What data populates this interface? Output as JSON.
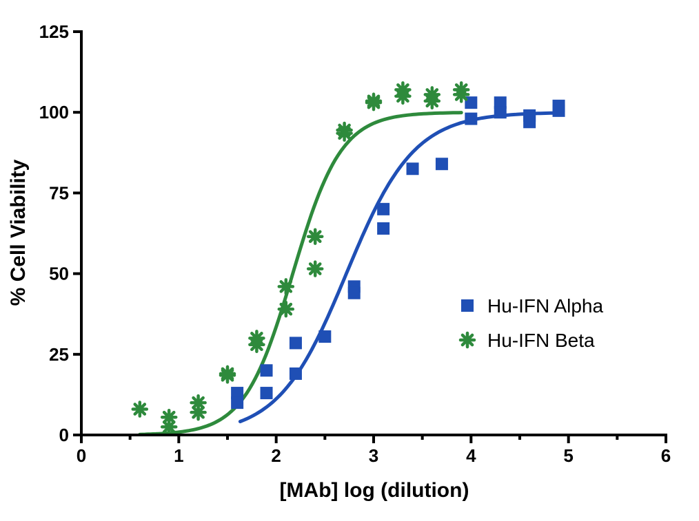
{
  "chart_data": {
    "type": "scatter",
    "title": "",
    "xlabel": "[MAb] log (dilution)",
    "ylabel": "% Cell Viability",
    "xlim": [
      0,
      6
    ],
    "ylim": [
      0,
      125
    ],
    "x_ticks": [
      0,
      1,
      2,
      3,
      4,
      5,
      6
    ],
    "y_ticks": [
      0,
      25,
      50,
      75,
      100,
      125
    ],
    "grid": false,
    "legend_position": "right",
    "series": [
      {
        "name": "Hu-IFN Alpha",
        "marker": "square",
        "color": "#1f4fb5",
        "points": [
          [
            1.6,
            13
          ],
          [
            1.6,
            10
          ],
          [
            1.9,
            20
          ],
          [
            1.9,
            13
          ],
          [
            2.2,
            28.5
          ],
          [
            2.2,
            19
          ],
          [
            2.5,
            30.5
          ],
          [
            2.8,
            46
          ],
          [
            2.8,
            44
          ],
          [
            3.1,
            70
          ],
          [
            3.1,
            64
          ],
          [
            3.4,
            82.5
          ],
          [
            3.7,
            84
          ],
          [
            4.0,
            103
          ],
          [
            4.0,
            98
          ],
          [
            4.3,
            103
          ],
          [
            4.3,
            100
          ],
          [
            4.6,
            99
          ],
          [
            4.6,
            97
          ],
          [
            4.9,
            102
          ],
          [
            4.9,
            100.5
          ]
        ],
        "fit": {
          "from": 1.63,
          "to": 4.9,
          "bottom": 0,
          "top": 100,
          "logEC50": 2.72,
          "slope": 1.25
        }
      },
      {
        "name": "Hu-IFN Beta",
        "marker": "asterisk",
        "color": "#2e8a3c",
        "points": [
          [
            0.6,
            8
          ],
          [
            0.9,
            5.5
          ],
          [
            0.9,
            2.5
          ],
          [
            1.2,
            10
          ],
          [
            1.2,
            7
          ],
          [
            1.5,
            19
          ],
          [
            1.5,
            18.5
          ],
          [
            1.8,
            30
          ],
          [
            1.8,
            28
          ],
          [
            2.1,
            46
          ],
          [
            2.1,
            39
          ],
          [
            2.4,
            61.5
          ],
          [
            2.4,
            51.5
          ],
          [
            2.7,
            94.5
          ],
          [
            2.7,
            93.5
          ],
          [
            3.0,
            103.5
          ],
          [
            3.0,
            103
          ],
          [
            3.3,
            107
          ],
          [
            3.3,
            105
          ],
          [
            3.6,
            105.5
          ],
          [
            3.6,
            103.5
          ],
          [
            3.9,
            107
          ],
          [
            3.9,
            105.5
          ]
        ],
        "fit": {
          "from": 0.6,
          "to": 3.9,
          "bottom": 0,
          "top": 100,
          "logEC50": 2.17,
          "slope": 1.75
        }
      }
    ]
  }
}
